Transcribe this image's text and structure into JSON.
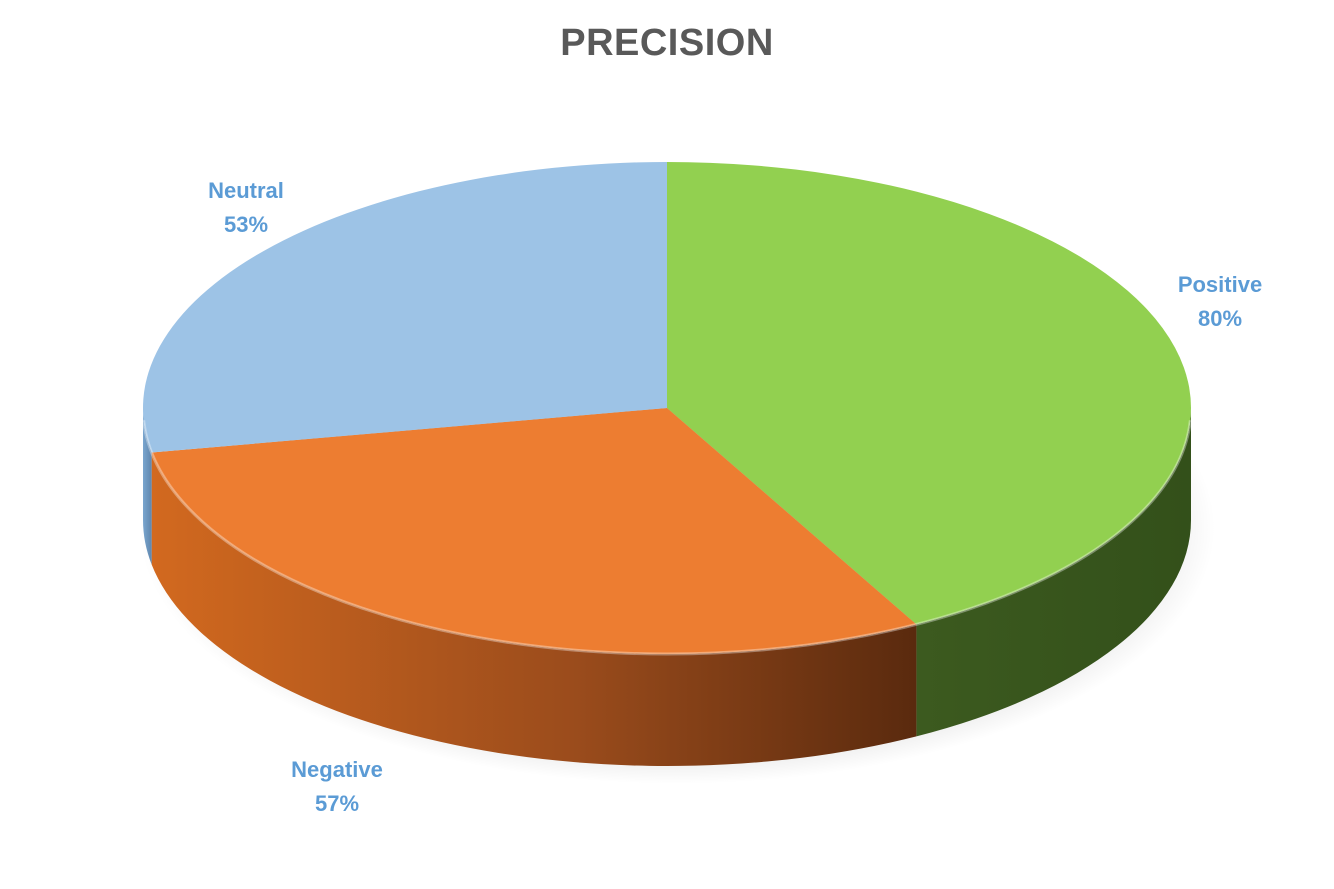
{
  "chart_data": {
    "type": "pie",
    "title": "PRECISION",
    "slices": [
      {
        "label": "Positive",
        "value": 80,
        "display": "80%",
        "color": "#92d050"
      },
      {
        "label": "Negative",
        "value": 57,
        "display": "57%",
        "color": "#ed7d31"
      },
      {
        "label": "Neutral",
        "value": 53,
        "display": "53%",
        "color": "#9dc3e6"
      }
    ],
    "label_color": "#5b9bd5",
    "style": "3d"
  }
}
